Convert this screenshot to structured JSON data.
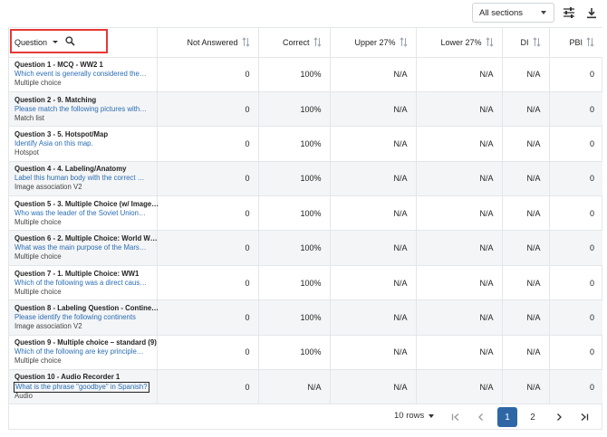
{
  "toolbar": {
    "sections_value": "All sections",
    "filters_icon": "sliders-icon",
    "download_icon": "download-icon"
  },
  "table": {
    "columns": {
      "question": "Question",
      "not_answered": "Not Answered",
      "correct": "Correct",
      "upper": "Upper 27%",
      "lower": "Lower 27%",
      "di": "DI",
      "pbi": "PBI"
    },
    "rows": [
      {
        "title": "Question 1 - MCQ - WW2 1",
        "prompt": "Which event is generally considered the…",
        "type": "Multiple choice",
        "not_answered": "0",
        "correct": "100%",
        "upper": "N/A",
        "lower": "N/A",
        "di": "N/A",
        "pbi": "0"
      },
      {
        "title": "Question 2 - 9. Matching",
        "prompt": "Please match the following pictures with…",
        "type": "Match list",
        "not_answered": "0",
        "correct": "100%",
        "upper": "N/A",
        "lower": "N/A",
        "di": "N/A",
        "pbi": "0"
      },
      {
        "title": "Question 3 - 5. Hotspot/Map",
        "prompt": "Identify Asia on this map.",
        "type": "Hotspot",
        "not_answered": "0",
        "correct": "100%",
        "upper": "N/A",
        "lower": "N/A",
        "di": "N/A",
        "pbi": "0"
      },
      {
        "title": "Question 4 - 4. Labeling/Anatomy",
        "prompt": "Label this human body with the correct …",
        "type": "Image association V2",
        "not_answered": "0",
        "correct": "100%",
        "upper": "N/A",
        "lower": "N/A",
        "di": "N/A",
        "pbi": "0"
      },
      {
        "title": "Question 5 - 3. Multiple Choice (w/ Image…",
        "prompt": "Who was the leader of the Soviet Union…",
        "type": "Multiple choice",
        "not_answered": "0",
        "correct": "100%",
        "upper": "N/A",
        "lower": "N/A",
        "di": "N/A",
        "pbi": "0"
      },
      {
        "title": "Question 6 - 2. Multiple Choice: World W…",
        "prompt": "What was the main purpose of the Mars…",
        "type": "Multiple choice",
        "not_answered": "0",
        "correct": "100%",
        "upper": "N/A",
        "lower": "N/A",
        "di": "N/A",
        "pbi": "0"
      },
      {
        "title": "Question 7 - 1. Multiple Choice: WW1",
        "prompt": "Which of the following was a direct caus…",
        "type": "Multiple choice",
        "not_answered": "0",
        "correct": "100%",
        "upper": "N/A",
        "lower": "N/A",
        "di": "N/A",
        "pbi": "0"
      },
      {
        "title": "Question 8 - Labeling Question - Contine…",
        "prompt": "Please identify the following continents",
        "type": "Image association V2",
        "not_answered": "0",
        "correct": "100%",
        "upper": "N/A",
        "lower": "N/A",
        "di": "N/A",
        "pbi": "0"
      },
      {
        "title": "Question 9 - Multiple choice – standard (9)",
        "prompt": "Which of the following are key principle…",
        "type": "Multiple choice",
        "not_answered": "0",
        "correct": "100%",
        "upper": "N/A",
        "lower": "N/A",
        "di": "N/A",
        "pbi": "0"
      },
      {
        "title": "Question 10 - Audio Recorder 1",
        "prompt": "What is the phrase \"goodbye\" in Spanish?",
        "type": "Audio",
        "not_answered": "0",
        "correct": "N/A",
        "upper": "N/A",
        "lower": "N/A",
        "di": "N/A",
        "pbi": "0"
      }
    ]
  },
  "pagination": {
    "rows_per_page": "10 rows",
    "pages": [
      "1",
      "2"
    ],
    "current_page": "1"
  }
}
